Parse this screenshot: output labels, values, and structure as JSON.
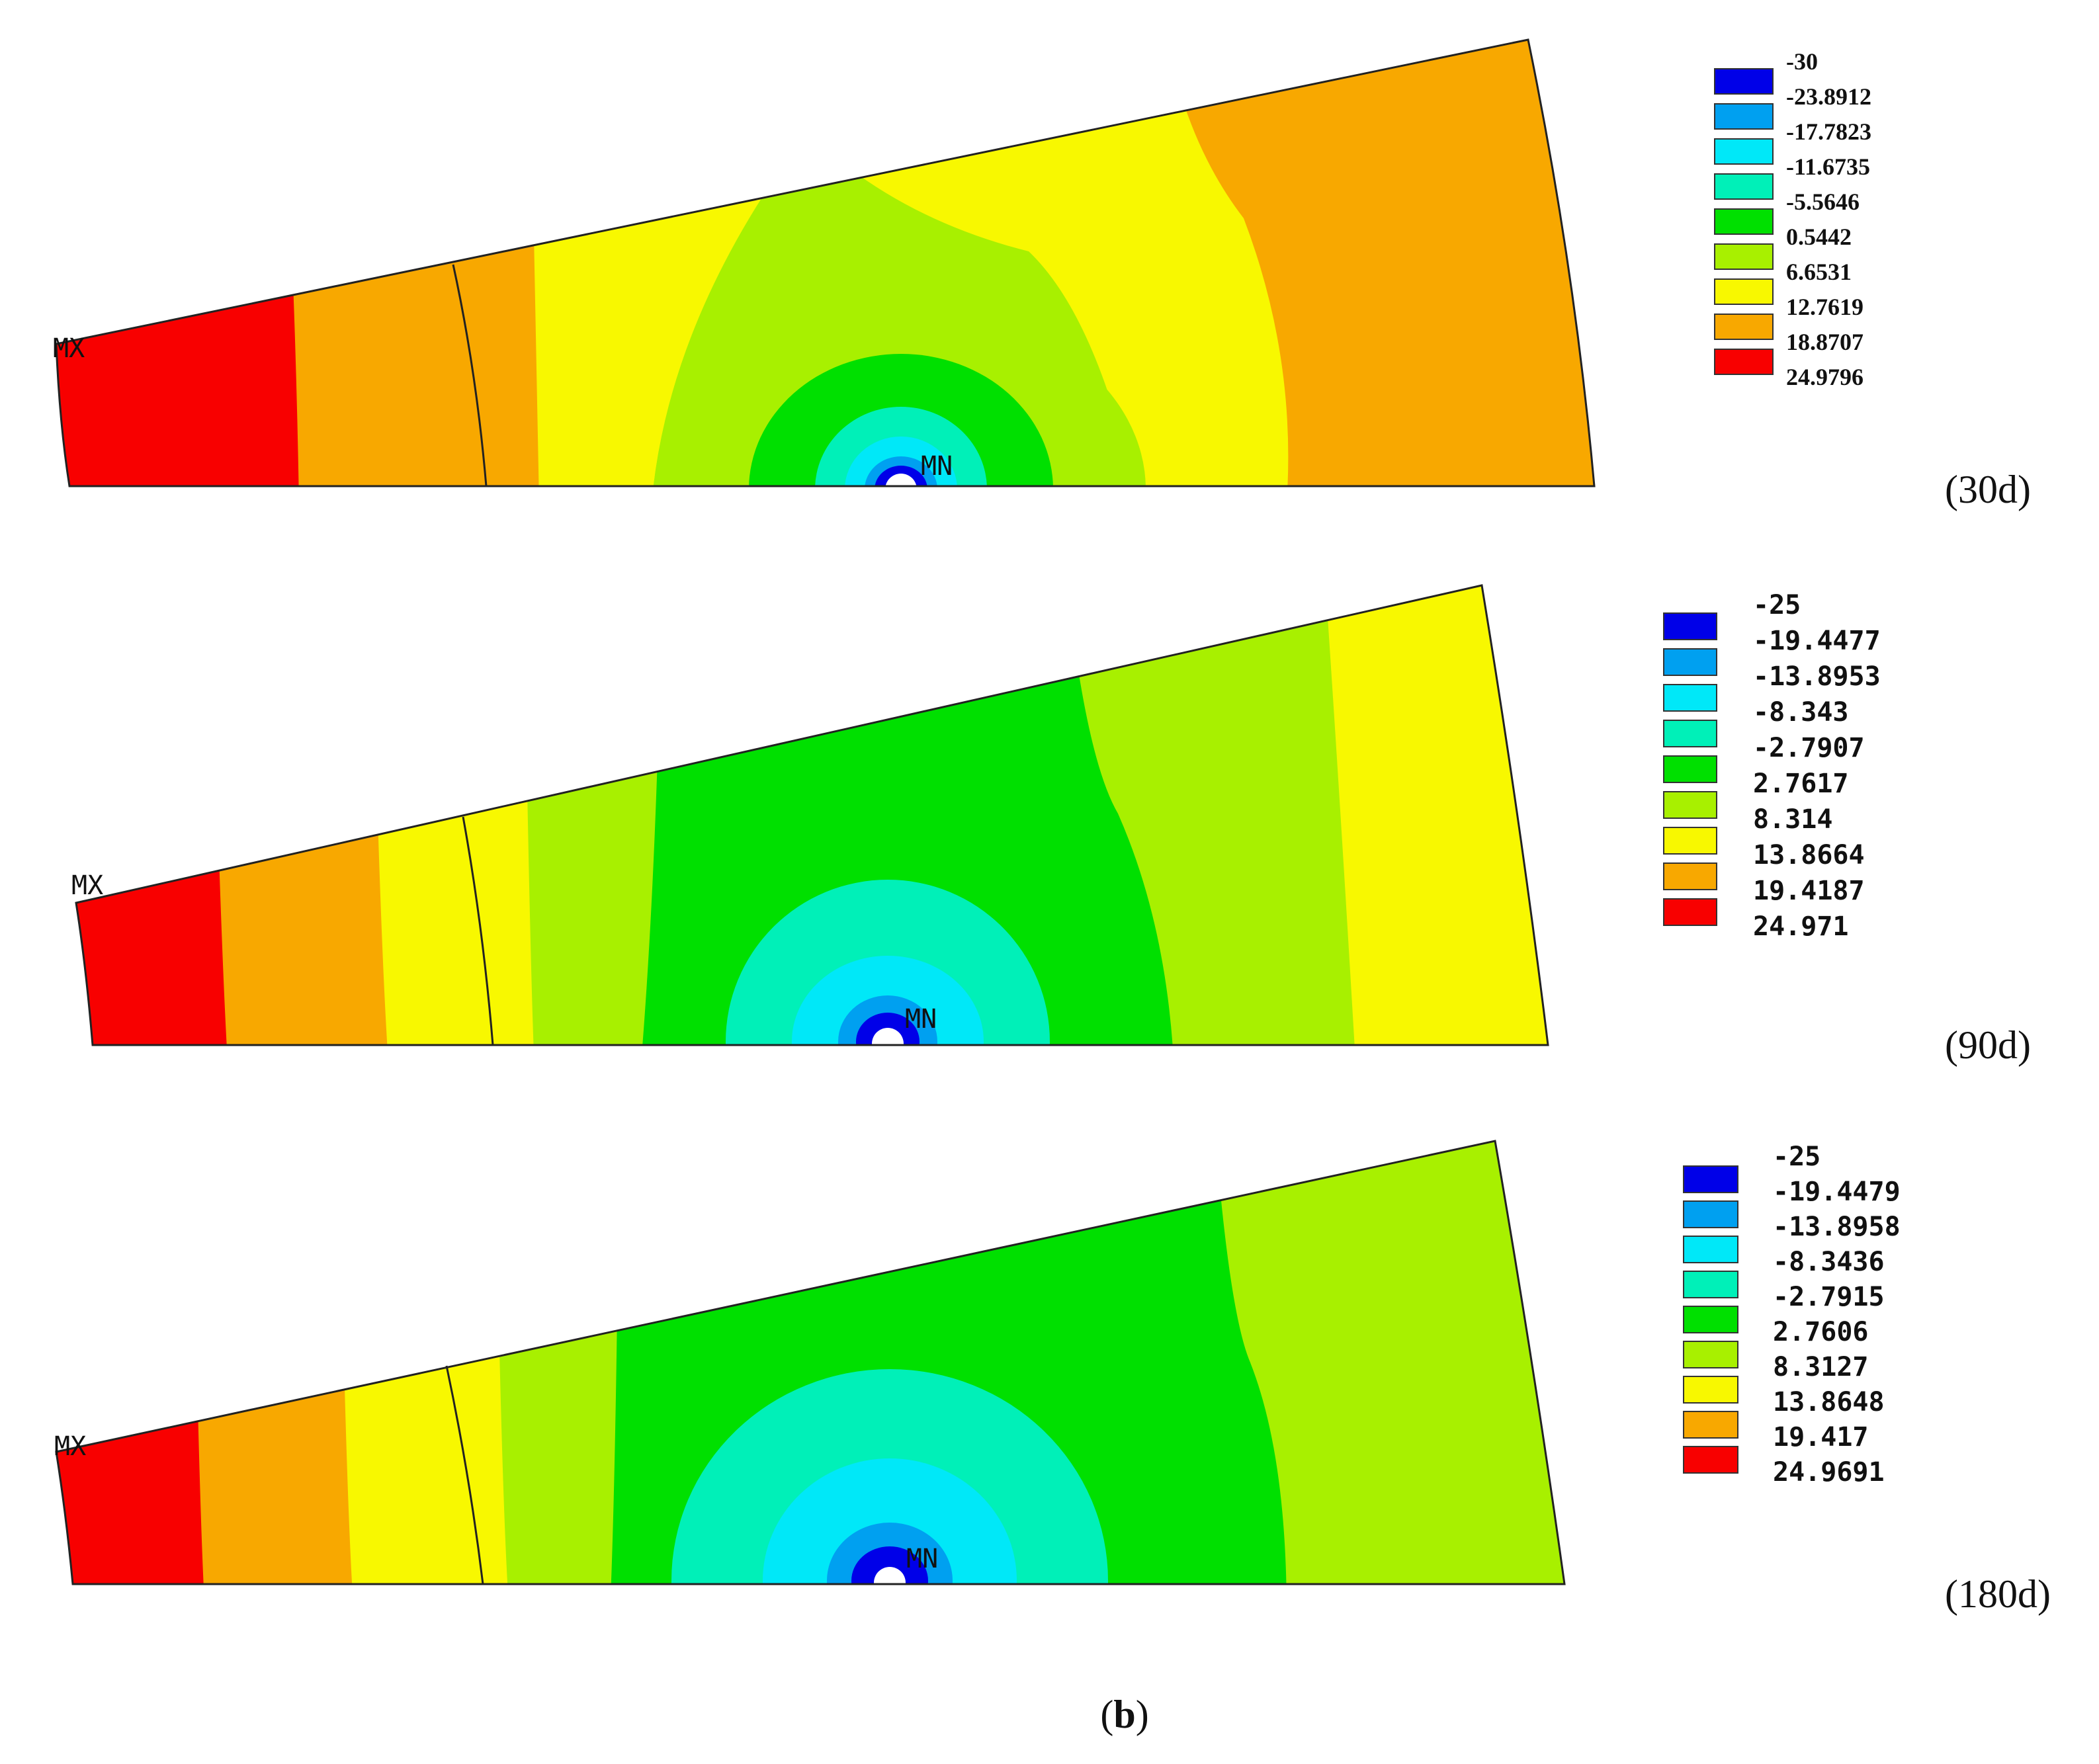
{
  "figure_label": {
    "prefix": "(",
    "letter": "b",
    "suffix": ")"
  },
  "panels": [
    {
      "id": "30d",
      "label": "(30d)",
      "max_marker": "MX",
      "min_marker": "MN",
      "legend": {
        "levels": [
          "-30",
          "-23.8912",
          "-17.7823",
          "-11.6735",
          "-5.5646",
          "0.5442",
          "6.6531",
          "12.7619",
          "18.8707",
          "24.9796"
        ],
        "swatch_colors": [
          "#0000e8",
          "#00a0f0",
          "#00e8f8",
          "#00f0b8",
          "#00e000",
          "#a8f000",
          "#f8f800",
          "#f8a800",
          "#f80000"
        ]
      },
      "bands_by_radial_position": [
        "#f80000",
        "#f8a800",
        "#f8a800",
        "#f8f800",
        "#a8f000",
        "#f8f800",
        "#f8a800"
      ],
      "centre_rings": [
        "#a8f000",
        "#00e000",
        "#00f0b8",
        "#00e8f8",
        "#00a0f0",
        "#0000e8"
      ]
    },
    {
      "id": "90d",
      "label": "(90d)",
      "max_marker": "MX",
      "min_marker": "MN",
      "legend": {
        "levels": [
          "-25",
          "-19.4477",
          "-13.8953",
          "-8.343",
          "-2.7907",
          "2.7617",
          "8.314",
          "13.8664",
          "19.4187",
          "24.971"
        ],
        "swatch_colors": [
          "#0000e8",
          "#00a0f0",
          "#00e8f8",
          "#00f0b8",
          "#00e000",
          "#a8f000",
          "#f8f800",
          "#f8a800",
          "#f80000"
        ]
      },
      "bands_by_radial_position": [
        "#f80000",
        "#f8a800",
        "#f8f800",
        "#f8f800",
        "#a8f000",
        "#00e000",
        "#a8f000",
        "#f8f800"
      ],
      "centre_rings": [
        "#00f0b8",
        "#00e8f8",
        "#00a0f0",
        "#0000e8"
      ]
    },
    {
      "id": "180d",
      "label": "(180d)",
      "max_marker": "MX",
      "min_marker": "MN",
      "legend": {
        "levels": [
          "-25",
          "-19.4479",
          "-13.8958",
          "-8.3436",
          "-2.7915",
          "2.7606",
          "8.3127",
          "13.8648",
          "19.417",
          "24.9691"
        ],
        "swatch_colors": [
          "#0000e8",
          "#00a0f0",
          "#00e8f8",
          "#00f0b8",
          "#00e000",
          "#a8f000",
          "#f8f800",
          "#f8a800",
          "#f80000"
        ]
      },
      "bands_by_radial_position": [
        "#f80000",
        "#f8a800",
        "#f8f800",
        "#f8f800",
        "#a8f000",
        "#00e000",
        "#a8f000",
        "#f8f800"
      ],
      "centre_rings": [
        "#00f0b8",
        "#00e8f8",
        "#00a0f0",
        "#0000e8"
      ]
    }
  ]
}
